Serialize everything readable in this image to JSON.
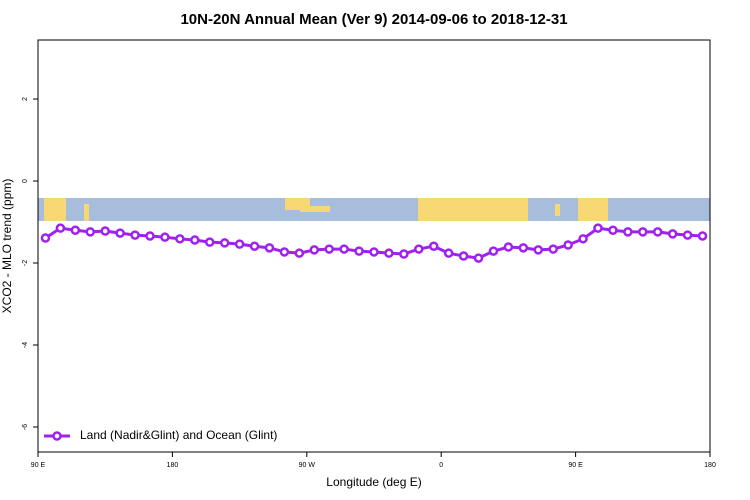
{
  "chart_data": {
    "type": "line",
    "title": "10N-20N Annual Mean (Ver 9)   2014-09-06 to 2018-12-31",
    "xlabel": "Longitude (deg E)",
    "ylabel": "XCO2 - MLO trend (ppm)",
    "x": [
      95,
      105,
      115,
      125,
      135,
      145,
      155,
      165,
      175,
      185,
      195,
      205,
      215,
      225,
      235,
      245,
      255,
      265,
      275,
      285,
      295,
      305,
      315,
      325,
      335,
      345,
      355,
      365,
      375,
      385,
      395,
      405,
      415,
      425,
      435,
      445,
      455,
      465,
      475,
      485,
      495,
      505,
      515,
      525,
      535
    ],
    "series": [
      {
        "name": "Land (Nadir&Glint) and Ocean (Glint)",
        "color": "#a020f0",
        "values": [
          -1.39,
          -1.15,
          -1.2,
          -1.24,
          -1.22,
          -1.27,
          -1.32,
          -1.34,
          -1.37,
          -1.41,
          -1.44,
          -1.49,
          -1.51,
          -1.54,
          -1.59,
          -1.63,
          -1.73,
          -1.76,
          -1.68,
          -1.66,
          -1.66,
          -1.71,
          -1.73,
          -1.76,
          -1.78,
          -1.66,
          -1.59,
          -1.76,
          -1.83,
          -1.88,
          -1.71,
          -1.61,
          -1.63,
          -1.68,
          -1.66,
          -1.56,
          -1.41,
          -1.15,
          -1.2,
          -1.24,
          -1.24,
          -1.24,
          -1.29,
          -1.32,
          -1.34
        ]
      }
    ],
    "xlim": [
      90,
      540
    ],
    "xticks": [
      {
        "value": 90,
        "label": "90 E"
      },
      180,
      {
        "value": 270,
        "label": "90 W"
      },
      {
        "value": 360,
        "label": "0"
      },
      {
        "value": 450,
        "label": "90 E"
      },
      {
        "value": 540,
        "label": "180"
      }
    ],
    "ylim": [
      -6.61,
      3.44
    ],
    "yticks": [
      -6,
      -4,
      -2,
      0,
      2
    ],
    "legend": "bottom-left"
  }
}
